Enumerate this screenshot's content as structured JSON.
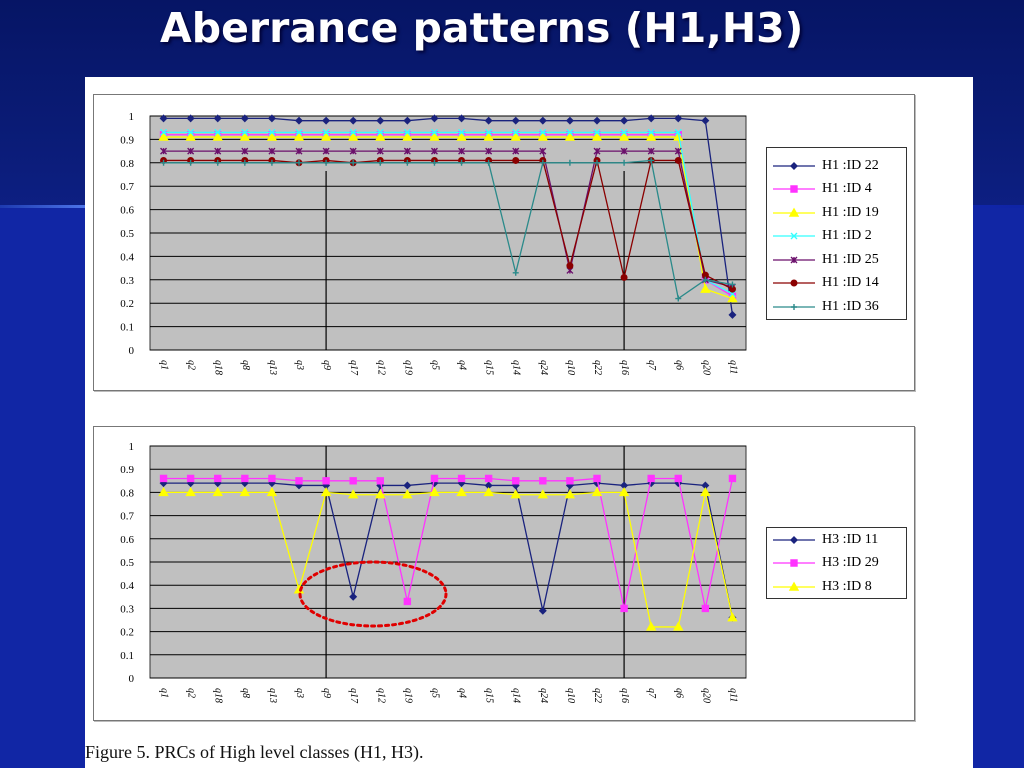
{
  "slide": {
    "title": "Aberrance patterns (H1,H3)"
  },
  "caption": "Figure 5. PRCs of High level classes (H1, H3).",
  "chart_data": [
    {
      "type": "line",
      "categories": [
        "q1",
        "q2",
        "q18",
        "q8",
        "q13",
        "q3",
        "q9",
        "q17",
        "q12",
        "q19",
        "q5",
        "q4",
        "q15",
        "q14",
        "q24",
        "q10",
        "q22",
        "q16",
        "q7",
        "q6",
        "q20",
        "q11"
      ],
      "ylim": [
        0,
        1
      ],
      "yticks": [
        "0",
        "0.1",
        "0.2",
        "0.3",
        "0.4",
        "0.5",
        "0.6",
        "0.7",
        "0.8",
        "0.9",
        "1"
      ],
      "grid": true,
      "legend_position": "right",
      "series": [
        {
          "name": "H1 :ID 22",
          "color": "#1a237e",
          "marker": "diamond",
          "values": [
            0.99,
            0.99,
            0.99,
            0.99,
            0.99,
            0.98,
            0.98,
            0.98,
            0.98,
            0.98,
            0.99,
            0.99,
            0.98,
            0.98,
            0.98,
            0.98,
            0.98,
            0.98,
            0.99,
            0.99,
            0.98,
            0.15
          ]
        },
        {
          "name": "H1 :ID 4",
          "color": "#ff33ff",
          "marker": "square",
          "values": [
            0.92,
            0.92,
            0.92,
            0.92,
            0.92,
            0.92,
            0.92,
            0.92,
            0.92,
            0.92,
            0.92,
            0.92,
            0.92,
            0.92,
            0.92,
            0.92,
            0.92,
            0.92,
            0.92,
            0.92,
            0.3,
            0.23
          ]
        },
        {
          "name": "H1 :ID 19",
          "color": "#ffff00",
          "marker": "triangle",
          "values": [
            0.91,
            0.91,
            0.91,
            0.91,
            0.91,
            0.91,
            0.91,
            0.91,
            0.91,
            0.91,
            0.91,
            0.91,
            0.91,
            0.91,
            0.91,
            0.91,
            0.91,
            0.91,
            0.91,
            0.91,
            0.26,
            0.22
          ]
        },
        {
          "name": "H1 :ID 2",
          "color": "#33ffff",
          "marker": "x",
          "values": [
            0.93,
            0.93,
            0.93,
            0.93,
            0.93,
            0.93,
            0.93,
            0.93,
            0.93,
            0.93,
            0.93,
            0.93,
            0.93,
            0.93,
            0.93,
            0.93,
            0.93,
            0.93,
            0.93,
            0.93,
            0.3,
            0.24
          ]
        },
        {
          "name": "H1 :ID 25",
          "color": "#6b0f6b",
          "marker": "star",
          "values": [
            0.85,
            0.85,
            0.85,
            0.85,
            0.85,
            0.85,
            0.85,
            0.85,
            0.85,
            0.85,
            0.85,
            0.85,
            0.85,
            0.85,
            0.85,
            0.34,
            0.85,
            0.85,
            0.85,
            0.85,
            0.3,
            0.27
          ]
        },
        {
          "name": "H1 :ID 14",
          "color": "#8b0000",
          "marker": "circle",
          "values": [
            0.81,
            0.81,
            0.81,
            0.81,
            0.81,
            0.8,
            0.81,
            0.8,
            0.81,
            0.81,
            0.81,
            0.81,
            0.81,
            0.81,
            0.81,
            0.36,
            0.81,
            0.31,
            0.81,
            0.81,
            0.32,
            0.26
          ]
        },
        {
          "name": "H1 :ID 36",
          "color": "#2a8a8a",
          "marker": "plus",
          "values": [
            0.8,
            0.8,
            0.8,
            0.8,
            0.8,
            0.8,
            0.8,
            0.8,
            0.8,
            0.8,
            0.8,
            0.8,
            0.8,
            0.33,
            0.8,
            0.8,
            0.8,
            0.8,
            0.81,
            0.22,
            0.3,
            0.28
          ]
        }
      ]
    },
    {
      "type": "line",
      "categories": [
        "q1",
        "q2",
        "q18",
        "q8",
        "q13",
        "q3",
        "q9",
        "q17",
        "q12",
        "q19",
        "q5",
        "q4",
        "q15",
        "q14",
        "q24",
        "q10",
        "q22",
        "q16",
        "q7",
        "q6",
        "q20",
        "q11"
      ],
      "ylim": [
        0,
        1
      ],
      "yticks": [
        "0",
        "0.1",
        "0.2",
        "0.3",
        "0.4",
        "0.5",
        "0.6",
        "0.7",
        "0.8",
        "0.9",
        "1"
      ],
      "grid": true,
      "legend_position": "right",
      "annotation": "red dotted ellipse around the dips at q3, q17 and q19",
      "series": [
        {
          "name": "H3 :ID 11",
          "color": "#1a237e",
          "marker": "diamond",
          "values": [
            0.84,
            0.84,
            0.84,
            0.84,
            0.84,
            0.83,
            0.83,
            0.35,
            0.83,
            0.83,
            0.84,
            0.84,
            0.83,
            0.83,
            0.29,
            0.83,
            0.84,
            0.83,
            0.84,
            0.84,
            0.83,
            0.26
          ]
        },
        {
          "name": "H3 :ID 29",
          "color": "#ff33ff",
          "marker": "square",
          "values": [
            0.86,
            0.86,
            0.86,
            0.86,
            0.86,
            0.85,
            0.85,
            0.85,
            0.85,
            0.33,
            0.86,
            0.86,
            0.86,
            0.85,
            0.85,
            0.85,
            0.86,
            0.3,
            0.86,
            0.86,
            0.3,
            0.86
          ]
        },
        {
          "name": "H3 :ID 8",
          "color": "#ffff00",
          "marker": "triangle",
          "values": [
            0.8,
            0.8,
            0.8,
            0.8,
            0.8,
            0.38,
            0.8,
            0.79,
            0.79,
            0.79,
            0.8,
            0.8,
            0.8,
            0.79,
            0.79,
            0.79,
            0.8,
            0.8,
            0.22,
            0.22,
            0.8,
            0.26
          ]
        }
      ]
    }
  ]
}
